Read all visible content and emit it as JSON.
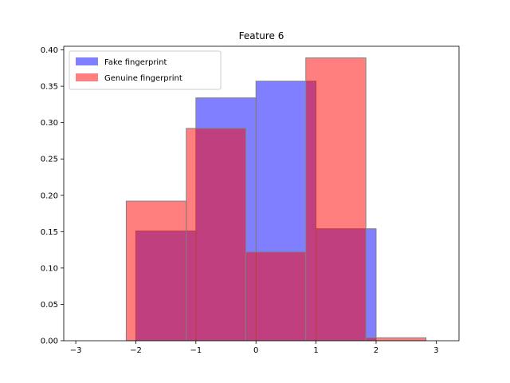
{
  "chart_data": {
    "type": "bar",
    "title": "Feature 6",
    "xlabel": "",
    "ylabel": "",
    "xlim": [
      -3.2,
      3.38
    ],
    "ylim": [
      0,
      0.405
    ],
    "xticks": [
      -3,
      -2,
      -1,
      0,
      1,
      2,
      3
    ],
    "yticks": [
      0.0,
      0.05,
      0.1,
      0.15,
      0.2,
      0.25,
      0.3,
      0.35,
      0.4
    ],
    "ytick_labels": [
      "0.00",
      "0.05",
      "0.10",
      "0.15",
      "0.20",
      "0.25",
      "0.30",
      "0.35",
      "0.40"
    ],
    "xtick_labels": [
      "−3",
      "−2",
      "−1",
      "0",
      "1",
      "2",
      "3"
    ],
    "grid": false,
    "legend_position": "top-left",
    "series": [
      {
        "name": "Fake fingerprint",
        "color": "#0000ff",
        "alpha": 0.5,
        "bins": [
          {
            "x0": -2.0,
            "x1": -1.0,
            "value": 0.151
          },
          {
            "x0": -1.0,
            "x1": 0.0,
            "value": 0.334
          },
          {
            "x0": 0.0,
            "x1": 1.0,
            "value": 0.357
          },
          {
            "x0": 1.0,
            "x1": 2.0,
            "value": 0.154
          }
        ]
      },
      {
        "name": "Genuine fingerprint",
        "color": "#ff0000",
        "alpha": 0.5,
        "bins": [
          {
            "x0": -2.16,
            "x1": -1.16,
            "value": 0.192
          },
          {
            "x0": -1.16,
            "x1": -0.17,
            "value": 0.292
          },
          {
            "x0": -0.17,
            "x1": 0.83,
            "value": 0.122
          },
          {
            "x0": 0.83,
            "x1": 1.83,
            "value": 0.389
          },
          {
            "x0": 1.83,
            "x1": 2.83,
            "value": 0.004
          }
        ]
      }
    ]
  }
}
